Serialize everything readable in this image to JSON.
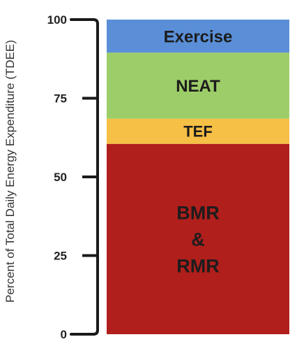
{
  "chart_data": {
    "type": "bar",
    "stacked": true,
    "title": "",
    "xlabel": "",
    "ylabel": "Percent of Total Daily Energy Expenditure (TDEE)",
    "ylim": [
      0,
      100
    ],
    "yticks": [
      "0",
      "25",
      "50",
      "75",
      "100"
    ],
    "grid": false,
    "legend": "none",
    "series": [
      {
        "name": "BMR & RMR",
        "label_lines": [
          "BMR",
          "&",
          "RMR"
        ],
        "from": 0,
        "to": 60.5,
        "color": "#b01f1c"
      },
      {
        "name": "TEF",
        "label_lines": [
          "TEF"
        ],
        "from": 60.5,
        "to": 68.5,
        "color": "#f6bf45"
      },
      {
        "name": "NEAT",
        "label_lines": [
          "NEAT"
        ],
        "from": 68.5,
        "to": 89.5,
        "color": "#9dcd68"
      },
      {
        "name": "Exercise",
        "label_lines": [
          "Exercise"
        ],
        "from": 89.5,
        "to": 100,
        "color": "#5a8fd8"
      }
    ]
  }
}
